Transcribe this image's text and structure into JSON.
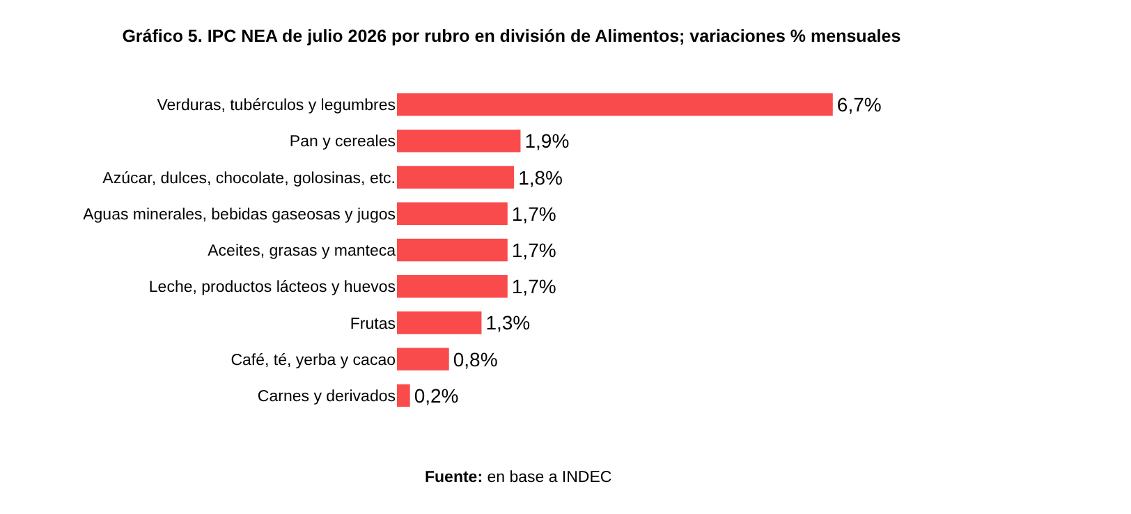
{
  "chart_data": {
    "type": "bar",
    "orientation": "horizontal",
    "title": "Gráfico 5. IPC NEA de julio 2026 por rubro en división de Alimentos; variaciones % mensuales",
    "categories": [
      "Verduras, tubérculos y legumbres",
      "Pan y cereales",
      "Azúcar, dulces, chocolate, golosinas, etc.",
      "Aguas minerales, bebidas gaseosas y jugos",
      "Aceites, grasas y manteca",
      "Leche, productos lácteos y huevos",
      "Frutas",
      "Café, té, yerba y cacao",
      "Carnes y derivados"
    ],
    "values": [
      6.7,
      1.9,
      1.8,
      1.7,
      1.7,
      1.7,
      1.3,
      0.8,
      0.2
    ],
    "value_labels": [
      "6,7%",
      "1,9%",
      "1,8%",
      "1,7%",
      "1,7%",
      "1,7%",
      "1,3%",
      "0,8%",
      "0,2%"
    ],
    "color": "#f94b4b",
    "annotations": [
      "Fuente: en base a INDEC"
    ]
  }
}
